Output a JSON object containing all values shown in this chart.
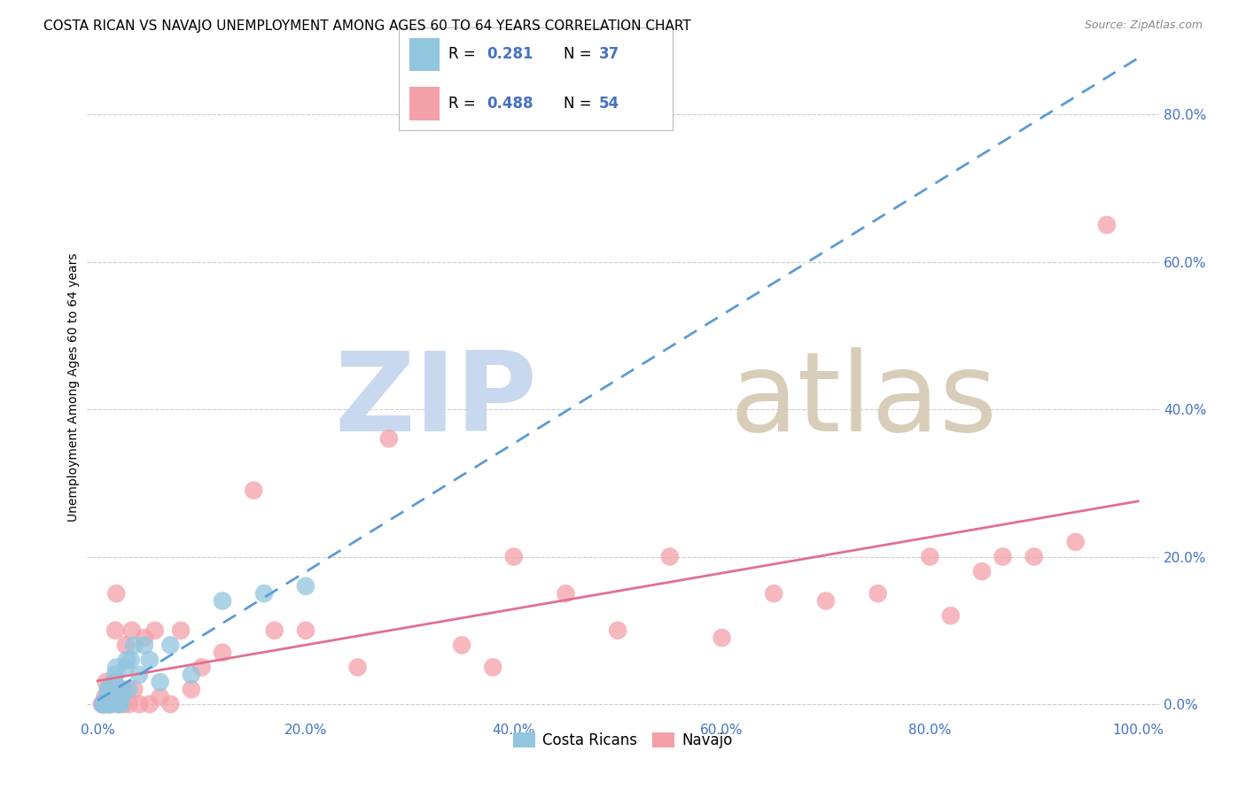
{
  "title": "COSTA RICAN VS NAVAJO UNEMPLOYMENT AMONG AGES 60 TO 64 YEARS CORRELATION CHART",
  "source": "Source: ZipAtlas.com",
  "ylabel": "Unemployment Among Ages 60 to 64 years",
  "cr_R": 0.281,
  "cr_N": 37,
  "nav_R": 0.488,
  "nav_N": 54,
  "cr_color": "#92c5de",
  "nav_color": "#f4a0a8",
  "cr_line_color": "#5b9bd5",
  "nav_line_color": "#e07090",
  "background_color": "#ffffff",
  "legend_label_cr": "Costa Ricans",
  "legend_label_nav": "Navajo",
  "cr_scatter_x": [
    0.005,
    0.005,
    0.005,
    0.007,
    0.008,
    0.009,
    0.01,
    0.01,
    0.01,
    0.01,
    0.011,
    0.012,
    0.013,
    0.014,
    0.015,
    0.016,
    0.017,
    0.018,
    0.02,
    0.021,
    0.022,
    0.023,
    0.025,
    0.027,
    0.028,
    0.03,
    0.032,
    0.035,
    0.04,
    0.045,
    0.05,
    0.06,
    0.07,
    0.09,
    0.12,
    0.16,
    0.2
  ],
  "cr_scatter_y": [
    0.0,
    0.0,
    0.0,
    0.0,
    0.0,
    0.01,
    0.01,
    0.01,
    0.02,
    0.02,
    0.0,
    0.0,
    0.01,
    0.02,
    0.02,
    0.03,
    0.04,
    0.05,
    0.0,
    0.0,
    0.0,
    0.01,
    0.02,
    0.05,
    0.06,
    0.02,
    0.06,
    0.08,
    0.04,
    0.08,
    0.06,
    0.03,
    0.08,
    0.04,
    0.14,
    0.15,
    0.16
  ],
  "nav_scatter_x": [
    0.004,
    0.005,
    0.006,
    0.007,
    0.008,
    0.01,
    0.01,
    0.012,
    0.013,
    0.014,
    0.015,
    0.016,
    0.017,
    0.018,
    0.02,
    0.02,
    0.022,
    0.025,
    0.027,
    0.03,
    0.033,
    0.035,
    0.04,
    0.045,
    0.05,
    0.055,
    0.06,
    0.07,
    0.08,
    0.09,
    0.1,
    0.12,
    0.15,
    0.17,
    0.2,
    0.25,
    0.28,
    0.35,
    0.38,
    0.4,
    0.45,
    0.5,
    0.55,
    0.6,
    0.65,
    0.7,
    0.75,
    0.8,
    0.82,
    0.85,
    0.87,
    0.9,
    0.94,
    0.97
  ],
  "nav_scatter_y": [
    0.0,
    0.0,
    0.0,
    0.01,
    0.03,
    0.0,
    0.01,
    0.0,
    0.0,
    0.02,
    0.02,
    0.03,
    0.1,
    0.15,
    0.0,
    0.02,
    0.01,
    0.0,
    0.08,
    0.0,
    0.1,
    0.02,
    0.0,
    0.09,
    0.0,
    0.1,
    0.01,
    0.0,
    0.1,
    0.02,
    0.05,
    0.07,
    0.29,
    0.1,
    0.1,
    0.05,
    0.36,
    0.08,
    0.05,
    0.2,
    0.15,
    0.1,
    0.2,
    0.09,
    0.15,
    0.14,
    0.15,
    0.2,
    0.12,
    0.18,
    0.2,
    0.2,
    0.22,
    0.65
  ],
  "xlim": [
    -0.01,
    1.02
  ],
  "ylim": [
    -0.02,
    0.88
  ],
  "xtick_vals": [
    0.0,
    0.2,
    0.4,
    0.6,
    0.8,
    1.0
  ],
  "xtick_labels": [
    "0.0%",
    "20.0%",
    "40.0%",
    "60.0%",
    "80.0%",
    "100.0%"
  ],
  "ytick_vals": [
    0.0,
    0.2,
    0.4,
    0.6,
    0.8
  ],
  "ytick_labels": [
    "0.0%",
    "20.0%",
    "40.0%",
    "60.0%",
    "80.0%"
  ],
  "grid_color": "#cccccc",
  "tick_color": "#4472c4",
  "title_fontsize": 11,
  "axis_label_fontsize": 10,
  "tick_fontsize": 11,
  "watermark_zip_color": "#c8d8ee",
  "watermark_atlas_color": "#d8cdb8"
}
